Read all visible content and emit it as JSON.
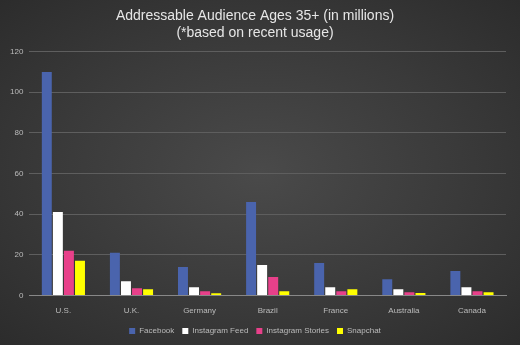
{
  "chart_data": {
    "type": "bar",
    "title": "Addressable Audience Ages 35+ (in millions)",
    "subtitle": "(*based on recent usage)",
    "categories": [
      "U.S.",
      "U.K.",
      "Germany",
      "Brazil",
      "France",
      "Australia",
      "Canada"
    ],
    "series": [
      {
        "name": "Facebook",
        "color": "#4a64ad",
        "values": [
          110,
          21,
          14,
          46,
          16,
          8,
          12
        ]
      },
      {
        "name": "Instagram Feed",
        "color": "#ffffff",
        "values": [
          41,
          7,
          4,
          15,
          4,
          3,
          4
        ]
      },
      {
        "name": "Instagram Stories",
        "color": "#e8408a",
        "values": [
          22,
          3.5,
          2,
          9,
          2,
          1.5,
          2
        ]
      },
      {
        "name": "Snapchat",
        "color": "#ffff00",
        "values": [
          17,
          3,
          1,
          2,
          3,
          1.2,
          1.5
        ]
      }
    ],
    "ylim": [
      0,
      120
    ],
    "yticks": [
      0,
      20,
      40,
      60,
      80,
      100,
      120
    ],
    "grid": true,
    "legend": "bottom"
  }
}
